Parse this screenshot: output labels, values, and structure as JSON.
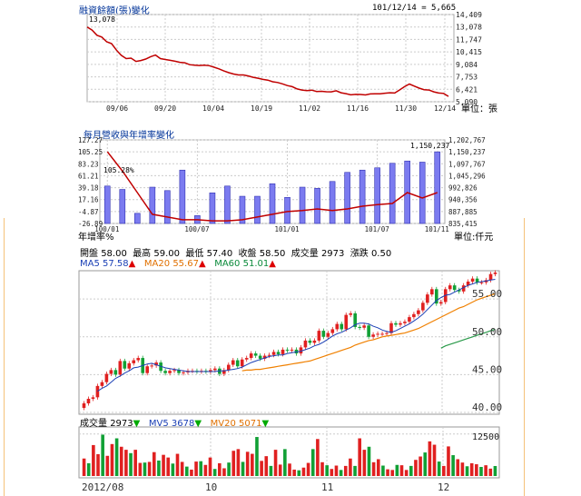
{
  "margin_chart": {
    "title": "融資餘額(張)變化",
    "date_label": "101/12/14",
    "value_label": "5,665",
    "peak_label": "13,078",
    "unit_label": "單位：張",
    "y_ticks": [
      "14,409",
      "13,078",
      "11,747",
      "10,415",
      "9,084",
      "7,753",
      "6,421",
      "5,090"
    ],
    "x_ticks": [
      "09/06",
      "09/20",
      "10/04",
      "10/19",
      "11/02",
      "11/16",
      "11/30",
      "12/14"
    ],
    "chart_data": {
      "type": "line",
      "title": "融資餘額(張)變化",
      "ylim": [
        5090,
        14409
      ],
      "series": [
        {
          "name": "融資餘額",
          "values": [
            13078,
            12750,
            12200,
            12000,
            11500,
            11300,
            10600,
            10050,
            9700,
            9750,
            9400,
            9500,
            9650,
            9900,
            10080,
            9700,
            9600,
            9520,
            9420,
            9300,
            9250,
            9050,
            9000,
            8960,
            9000,
            8940,
            8780,
            8600,
            8380,
            8200,
            8050,
            7950,
            7950,
            7850,
            7700,
            7600,
            7480,
            7400,
            7230,
            7150,
            7000,
            6820,
            6700,
            6460,
            6340,
            6280,
            6330,
            6190,
            6210,
            6160,
            6150,
            6260,
            6050,
            5950,
            5830,
            5880,
            5870,
            5820,
            5920,
            5940,
            5930,
            6000,
            6050,
            6020,
            6350,
            6700,
            6980,
            6760,
            6550,
            6380,
            6340,
            6150,
            6020,
            5980,
            5665
          ]
        }
      ]
    }
  },
  "revenue_chart": {
    "title": "每月營收與年增率變化",
    "left_axis_label": "年增率%",
    "unit_label": "單位:仟元",
    "top_label": "1,150,237",
    "yoy_start_label": "105.28%",
    "left_ticks": [
      "127.27",
      "105.25",
      "83.23",
      "61.21",
      "39.18",
      "17.16",
      "-4.87",
      "-26.89"
    ],
    "right_ticks": [
      "1,202,767",
      "1,150,237",
      "1,097,767",
      "1,045,296",
      "992,826",
      "940,356",
      "887,885",
      "835,415"
    ],
    "x_ticks": [
      "100/01",
      "100/07",
      "101/01",
      "101/07",
      "101/11"
    ],
    "chart_data": {
      "type": "bar",
      "title": "每月營收與年增率變化",
      "categories": [
        "100/01",
        "100/02",
        "100/03",
        "100/04",
        "100/05",
        "100/06",
        "100/07",
        "100/08",
        "100/09",
        "100/10",
        "100/11",
        "100/12",
        "101/01",
        "101/02",
        "101/03",
        "101/04",
        "101/05",
        "101/06",
        "101/07",
        "101/08",
        "101/09",
        "101/10",
        "101/11"
      ],
      "series": [
        {
          "name": "營收",
          "values": [
            1000000,
            985000,
            880000,
            995000,
            980000,
            1070000,
            870000,
            970000,
            1000000,
            955000,
            955000,
            1010000,
            950000,
            995000,
            990000,
            1020000,
            1060000,
            1070000,
            1080000,
            1100000,
            1110000,
            1105000,
            1150237
          ]
        },
        {
          "name": "年增率%",
          "values": [
            105.28,
            70,
            30,
            -10,
            -15,
            -20,
            -20,
            -22,
            -22,
            -20,
            -15,
            -10,
            -5,
            -3,
            0,
            -3,
            0,
            5,
            8,
            10,
            30,
            20,
            30
          ]
        }
      ],
      "ylim_left": [
        -26.89,
        127.27
      ],
      "ylim_right": [
        835415,
        1202767
      ]
    }
  },
  "stock_info": {
    "open_label": "開盤",
    "open": "58.00",
    "high_label": "最高",
    "high": "59.00",
    "low_label": "最低",
    "low": "57.40",
    "close_label": "收盤",
    "close": "58.50",
    "volume_label": "成交量",
    "volume": "2973",
    "change_label": "漲跌",
    "change": "0.50"
  },
  "ma_info": {
    "ma5_label": "MA5",
    "ma5": "57.58",
    "ma20_label": "MA20",
    "ma20": "55.67",
    "ma60_label": "MA60",
    "ma60": "51.01",
    "arrow": "▲"
  },
  "price_chart": {
    "y_ticks": [
      "55.00",
      "50.00",
      "45.00",
      "40.00"
    ],
    "chart_data": {
      "type": "line",
      "ylim": [
        40,
        58.5
      ],
      "series": [
        {
          "name": "收盤",
          "values": [
            41.2,
            41.8,
            42.0,
            43.5,
            44.0,
            45.1,
            45.6,
            45.0,
            46.8,
            45.8,
            46.5,
            46.9,
            47.2,
            45.2,
            46.1,
            46.2,
            46.6,
            45.5,
            45.2,
            45.5,
            45.6,
            45.2,
            45.3,
            45.5,
            45.5,
            45.4,
            45.5,
            45.4,
            45.6,
            45.8,
            45.1,
            45.6,
            46.3,
            46.9,
            46.1,
            47.0,
            47.2,
            47.8,
            47.5,
            47.1,
            47.5,
            47.6,
            48.0,
            47.7,
            48.3,
            48.2,
            48.3,
            47.8,
            48.6,
            49.5,
            49.2,
            49.5,
            50.8,
            50.0,
            50.5,
            51.0,
            51.7,
            51.0,
            52.9,
            53.1,
            51.3,
            51.2,
            51.5,
            50.0,
            50.3,
            50.4,
            50.4,
            50.5,
            51.8,
            51.6,
            51.8,
            52.0,
            52.6,
            53.0,
            53.5,
            54.5,
            55.6,
            56.3,
            54.4,
            54.6,
            56.3,
            56.8,
            56.2,
            56.0,
            56.8,
            57.3,
            57.7,
            57.2,
            57.2,
            57.5,
            58.3,
            58.5
          ]
        },
        {
          "name": "MA5",
          "values": [
            42.8,
            43.2,
            43.5,
            44.0,
            44.5,
            44.8,
            45.2,
            45.5,
            45.9,
            46.0,
            46.2,
            46.4,
            46.5,
            46.3,
            46.1,
            45.9,
            45.8,
            45.7,
            45.6,
            45.5,
            45.4,
            45.4,
            45.4,
            45.4,
            45.4,
            45.4,
            45.4,
            45.5,
            45.5,
            45.6,
            45.7,
            45.8,
            46.0,
            46.3,
            46.6,
            46.8,
            47.0,
            47.2,
            47.4,
            47.5,
            47.6,
            47.6,
            47.8,
            47.9,
            48.0,
            48.1,
            48.3,
            48.5,
            48.8,
            49.0,
            49.3,
            49.7,
            50.1,
            50.4,
            50.6,
            50.9,
            51.2,
            51.6,
            51.8,
            51.8,
            51.7,
            51.4,
            51.2,
            50.9,
            50.7,
            50.6,
            50.8,
            51.1,
            51.4,
            51.7,
            52.1,
            52.5,
            53.0,
            53.6,
            54.2,
            54.8,
            55.2,
            55.5,
            55.6,
            55.9,
            56.2,
            56.5,
            56.8,
            57.0,
            57.2,
            57.3,
            57.4,
            57.5,
            57.6
          ]
        },
        {
          "name": "MA20",
          "values": [
            45.5,
            45.6,
            45.6,
            45.7,
            45.7,
            45.8,
            45.9,
            46.0,
            46.1,
            46.2,
            46.3,
            46.4,
            46.5,
            46.6,
            46.7,
            46.8,
            47.0,
            47.2,
            47.4,
            47.6,
            47.8,
            48.0,
            48.2,
            48.4,
            48.6,
            48.9,
            49.1,
            49.3,
            49.5,
            49.6,
            49.8,
            50.0,
            50.1,
            50.2,
            50.3,
            50.4,
            50.5,
            50.7,
            50.9,
            51.1,
            51.4,
            51.7,
            52.0,
            52.3,
            52.6,
            52.9,
            53.2,
            53.5,
            53.8,
            54.0,
            54.3,
            54.6,
            54.9,
            55.1,
            55.3,
            55.5,
            55.7
          ]
        },
        {
          "name": "MA60",
          "values": [
            48.5,
            48.8,
            49.0,
            49.2,
            49.4,
            49.6,
            49.8,
            50.0,
            50.2,
            50.4,
            50.6,
            50.8,
            51.0
          ]
        }
      ]
    }
  },
  "volume_info": {
    "vol_label": "成交量",
    "vol": "2973",
    "mv5_label": "MV5",
    "mv5": "3678",
    "mv20_label": "MV20",
    "mv20": "5071",
    "down_arrow": "▼"
  },
  "volume_chart": {
    "y_tick": "12500",
    "x_ticks": [
      "2012/08",
      "10",
      "11",
      "12"
    ],
    "chart_data": {
      "type": "bar",
      "ylim": [
        0,
        13500
      ],
      "series": [
        {
          "name": "成交量",
          "values": [
            5200,
            3800,
            9200,
            6500,
            12300,
            6000,
            9500,
            11200,
            8700,
            7800,
            6800,
            7800,
            3900,
            4000,
            4200,
            7100,
            4600,
            6300,
            5500,
            3700,
            6600,
            4200,
            2800,
            1900,
            4300,
            4400,
            3300,
            5500,
            2100,
            3800,
            2300,
            4000,
            7500,
            8000,
            4200,
            7200,
            6600,
            11600,
            4500,
            5900,
            3000,
            7800,
            3400,
            8000,
            3700,
            1900,
            1700,
            2500,
            3900,
            8000,
            11000,
            4100,
            3200,
            2100,
            3100,
            1800,
            3000,
            5200,
            3000,
            11200,
            7800,
            8700,
            4100,
            5000,
            3100,
            2000,
            1800,
            3300,
            3200,
            1800,
            3000,
            4800,
            5800,
            7000,
            10300,
            9300,
            4300,
            3000,
            8800,
            6200,
            5000,
            4000,
            2900,
            3800,
            3500,
            2700,
            3200,
            2200,
            2973
          ]
        }
      ]
    }
  }
}
